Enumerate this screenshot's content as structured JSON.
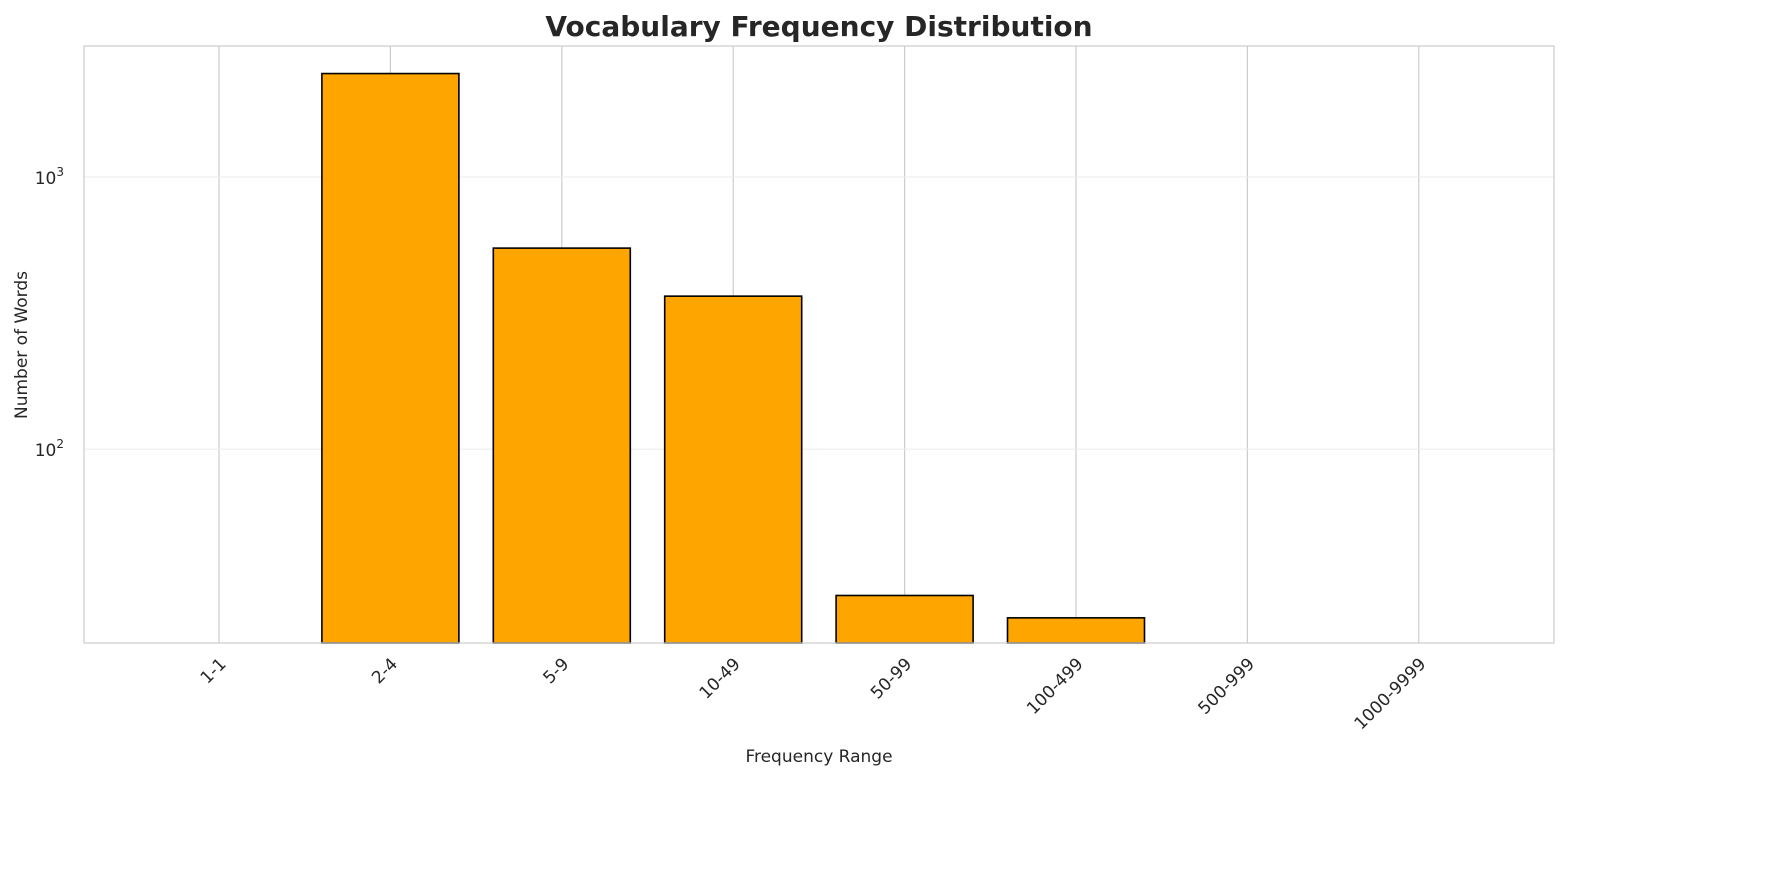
{
  "chart_data": {
    "type": "bar",
    "title": "Vocabulary Frequency Distribution",
    "xlabel": "Frequency Range",
    "ylabel": "Number of Words",
    "yscale": "log",
    "ylim": [
      19.4,
      3030
    ],
    "yticks": [
      {
        "value": 100,
        "base": "10",
        "exp": "2"
      },
      {
        "value": 1000,
        "base": "10",
        "exp": "3"
      }
    ],
    "categories": [
      "1-1",
      "2-4",
      "5-9",
      "10-49",
      "50-99",
      "100-499",
      "500-999",
      "1000-9999"
    ],
    "values": [
      0,
      2400,
      548,
      365,
      29,
      24,
      0,
      0
    ],
    "bar_color": "#FFA500",
    "edge_color": "#000000",
    "grid": true,
    "legend": "none"
  }
}
